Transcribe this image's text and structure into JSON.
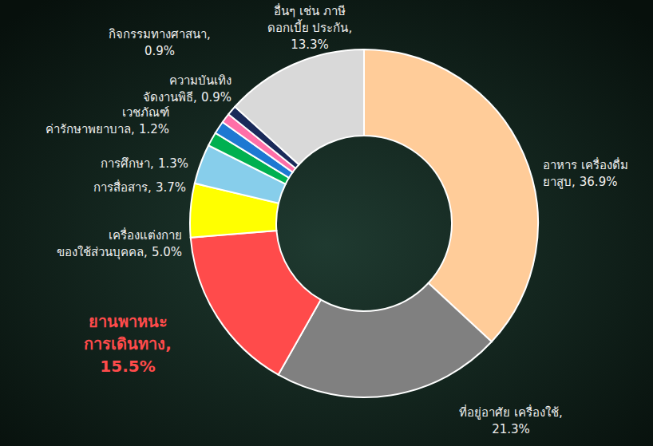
{
  "chart_data": {
    "type": "pie",
    "categories": [
      "อาหาร เครื่องดื่ม ยาสูบ,",
      "ที่อยู่อาศัย เครื่องใช้,",
      "ยานพาหนะ การเดินทาง,",
      "เครื่องแต่งกาย ของใช้ส่วนบุคคล,",
      "การสื่อสาร,",
      "การศึกษา,",
      "เวชภัณฑ์ ค่ารักษาพยาบาล,",
      "ความบันเทิง จัดงานพิธี,",
      "กิจกรรมทางศาสนา,",
      "อื่นๆ เช่น ภาษี ดอกเบี้ย ประกัน,"
    ],
    "values": [
      36.9,
      21.3,
      15.5,
      5.0,
      3.7,
      1.3,
      1.2,
      0.9,
      0.9,
      13.3
    ],
    "value_labels": [
      "36.9%",
      "21.3%",
      "15.5%",
      "5.0%",
      "3.7%",
      "1.3%",
      "1.2%",
      "0.9%",
      "0.9%",
      "13.3%"
    ],
    "colors": [
      "#ffcc99",
      "#808080",
      "#ff4b4b",
      "#ffff00",
      "#87ceeb",
      "#00b050",
      "#1e78d2",
      "#ff6fa8",
      "#1a2a5a",
      "#d9d9d9"
    ],
    "data_labels": true
  }
}
